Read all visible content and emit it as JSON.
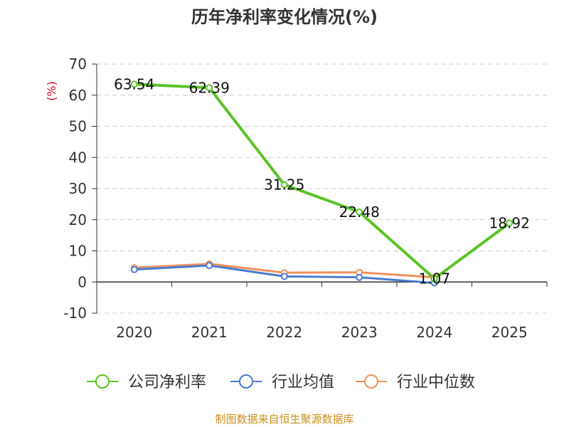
{
  "chart_data": {
    "type": "line",
    "title": "历年净利率变化情况(%)",
    "ylabel": "(%)",
    "categories": [
      "2020",
      "2021",
      "2022",
      "2023",
      "2024",
      "2025"
    ],
    "ylim": [
      -10,
      70
    ],
    "yticks": [
      -10,
      0,
      10,
      20,
      30,
      40,
      50,
      60,
      70
    ],
    "grid": true,
    "legend_position": "bottom",
    "series": [
      {
        "name": "公司净利率",
        "color": "#5bc326",
        "values": [
          63.54,
          62.39,
          31.25,
          22.48,
          1.07,
          18.92
        ],
        "labels": [
          "63.54",
          "62.39",
          "31.25",
          "22.48",
          "1.07",
          "18.92"
        ]
      },
      {
        "name": "行业均值",
        "color": "#4a7bd0",
        "values": [
          4.0,
          5.3,
          1.8,
          1.5,
          -0.3,
          null
        ]
      },
      {
        "name": "行业中位数",
        "color": "#f0915c",
        "values": [
          4.6,
          5.8,
          3.0,
          3.1,
          1.5,
          null
        ]
      }
    ]
  },
  "footer": {
    "source": "制图数据来自恒生聚源数据库"
  }
}
